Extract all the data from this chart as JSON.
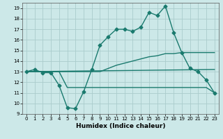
{
  "xlabel": "Humidex (Indice chaleur)",
  "bg_color": "#cce8e8",
  "grid_color": "#aacccc",
  "line_color": "#1a7a6e",
  "xlim": [
    -0.5,
    23.5
  ],
  "ylim": [
    9,
    19.5
  ],
  "xticks": [
    0,
    1,
    2,
    3,
    4,
    5,
    6,
    7,
    8,
    9,
    10,
    11,
    12,
    13,
    14,
    15,
    16,
    17,
    18,
    19,
    20,
    21,
    22,
    23
  ],
  "yticks": [
    9,
    10,
    11,
    12,
    13,
    14,
    15,
    16,
    17,
    18,
    19
  ],
  "series": [
    {
      "x": [
        0,
        1,
        2,
        3,
        4,
        5,
        6,
        7,
        8,
        9,
        10,
        11,
        12,
        13,
        14,
        15,
        16,
        17,
        18,
        19,
        20,
        21,
        22,
        23
      ],
      "y": [
        13,
        13.2,
        12.9,
        12.9,
        11.7,
        9.6,
        9.5,
        11.1,
        13.2,
        15.5,
        16.3,
        17.0,
        17.0,
        16.8,
        17.2,
        18.6,
        18.3,
        19.2,
        16.7,
        14.8,
        13.3,
        13.0,
        12.2,
        11.0
      ],
      "marker": "D",
      "markersize": 2.5,
      "linewidth": 1.0
    },
    {
      "x": [
        0,
        2,
        5,
        9,
        10,
        11,
        12,
        13,
        14,
        15,
        16,
        17,
        18,
        19,
        20,
        21,
        22,
        23
      ],
      "y": [
        13,
        13,
        13,
        13.0,
        13.3,
        13.6,
        13.8,
        14.0,
        14.2,
        14.4,
        14.5,
        14.7,
        14.7,
        14.8,
        14.8,
        14.8,
        14.8,
        14.8
      ],
      "marker": null,
      "linewidth": 1.0
    },
    {
      "x": [
        0,
        23
      ],
      "y": [
        13,
        13.2
      ],
      "marker": null,
      "linewidth": 1.0
    },
    {
      "x": [
        0,
        4,
        5,
        6,
        7,
        8,
        9,
        10,
        11,
        12,
        13,
        14,
        15,
        16,
        17,
        18,
        19,
        20,
        21,
        22,
        23
      ],
      "y": [
        13,
        13,
        11.5,
        11.5,
        11.5,
        11.5,
        11.5,
        11.5,
        11.5,
        11.5,
        11.5,
        11.5,
        11.5,
        11.5,
        11.5,
        11.5,
        11.5,
        11.5,
        11.5,
        11.5,
        11.0
      ],
      "marker": null,
      "linewidth": 1.0
    }
  ]
}
